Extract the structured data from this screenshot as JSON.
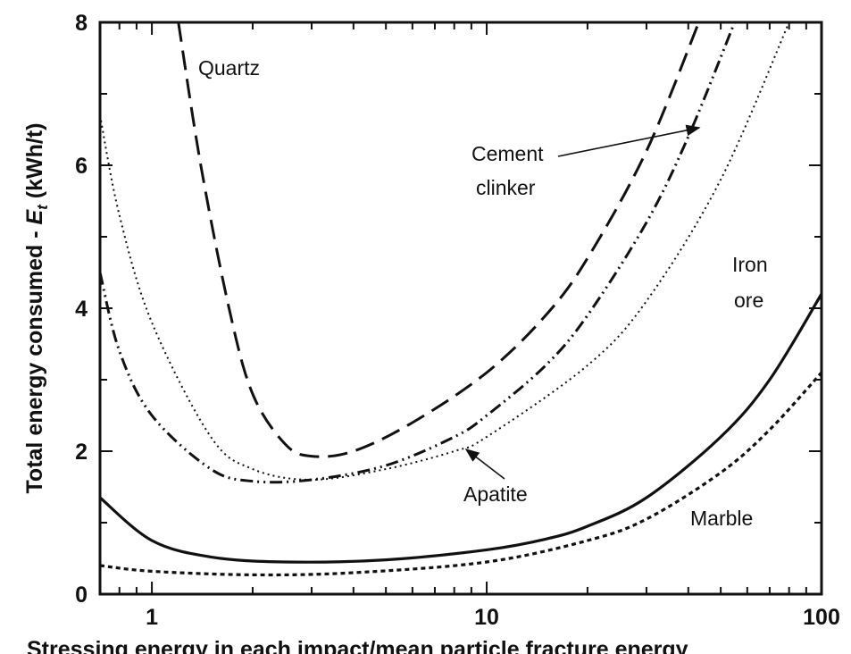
{
  "chart_data": {
    "type": "line",
    "title": "",
    "xlabel": "Stressing energy in each impact/mean particle fracture energy",
    "ylabel_main": "Total energy consumed - ",
    "ylabel_symbol": "E",
    "ylabel_sub": "t",
    "ylabel_unit": " (kWh/t)",
    "xscale": "log",
    "xlim": [
      0.7,
      100
    ],
    "ylim": [
      0,
      8
    ],
    "xticks": [
      {
        "v": 1,
        "label": "1"
      },
      {
        "v": 10,
        "label": "10"
      },
      {
        "v": 100,
        "label": "100"
      }
    ],
    "yticks": [
      {
        "v": 0,
        "label": "0"
      },
      {
        "v": 2,
        "label": "2"
      },
      {
        "v": 4,
        "label": "4"
      },
      {
        "v": 6,
        "label": "6"
      },
      {
        "v": 8,
        "label": "8"
      }
    ],
    "grid": false,
    "series": [
      {
        "name": "Quartz",
        "style": "long-dash",
        "x": [
          1.2,
          1.4,
          1.7,
          2,
          2.5,
          3,
          4,
          6,
          10,
          15,
          20,
          30,
          43
        ],
        "y": [
          8,
          6,
          4,
          2.8,
          2.1,
          1.93,
          2.0,
          2.4,
          3.1,
          3.9,
          4.7,
          6.2,
          8
        ]
      },
      {
        "name": "Cement clinker",
        "style": "dash-dot-dot",
        "x": [
          0.7,
          0.8,
          1,
          1.5,
          2,
          3,
          5,
          8,
          10,
          15,
          20,
          30,
          40,
          55
        ],
        "y": [
          4.5,
          3.4,
          2.5,
          1.75,
          1.58,
          1.6,
          1.8,
          2.2,
          2.5,
          3.2,
          3.9,
          5.2,
          6.4,
          8
        ]
      },
      {
        "name": "Apatite",
        "style": "dotted",
        "x": [
          0.7,
          0.8,
          1,
          1.5,
          2,
          3,
          5,
          8,
          10,
          20,
          30,
          50,
          80
        ],
        "y": [
          6.7,
          5.3,
          3.8,
          2.2,
          1.75,
          1.6,
          1.75,
          2.0,
          2.2,
          3.2,
          4.1,
          5.8,
          8
        ]
      },
      {
        "name": "Iron ore",
        "style": "solid",
        "x": [
          0.7,
          1,
          1.5,
          2.5,
          5,
          10,
          15,
          20,
          30,
          50,
          70,
          100
        ],
        "y": [
          1.35,
          0.75,
          0.52,
          0.45,
          0.48,
          0.62,
          0.77,
          0.95,
          1.35,
          2.2,
          3.0,
          4.2
        ]
      },
      {
        "name": "Marble",
        "style": "short-dash",
        "x": [
          0.7,
          1,
          2,
          4,
          10,
          20,
          30,
          50,
          70,
          100
        ],
        "y": [
          0.4,
          0.32,
          0.27,
          0.3,
          0.45,
          0.75,
          1.05,
          1.7,
          2.3,
          3.1
        ]
      }
    ],
    "annotations": {
      "quartz": "Quartz",
      "cement_1": "Cement",
      "cement_2": "clinker",
      "iron_1": "Iron",
      "iron_2": "ore",
      "apatite": "Apatite",
      "marble": "Marble"
    }
  }
}
